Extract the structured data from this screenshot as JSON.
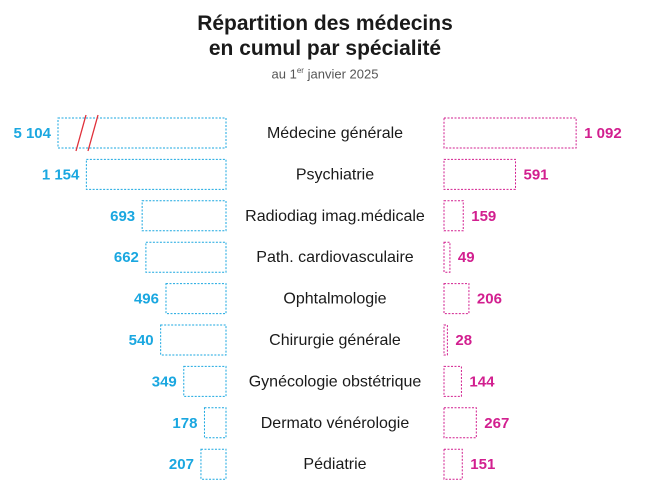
{
  "title_line1": "Répartition des médecins",
  "title_line2": "en cumul par spécialité",
  "subtitle_prefix": "au 1",
  "subtitle_sup": "er",
  "subtitle_suffix": " janvier 2025",
  "colors": {
    "left": "#1aa7e0",
    "right": "#d21f8f",
    "text": "#1a1a1a",
    "break": "#e0303a"
  },
  "chart_data": {
    "type": "bar",
    "title": "Répartition des médecins en cumul par spécialité",
    "subtitle": "au 1er janvier 2025",
    "categories": [
      "Médecine générale",
      "Psychiatrie",
      "Radiodiag imag.médicale",
      "Path. cardiovasculaire",
      "Ophtalmologie",
      "Chirurgie générale",
      "Gynécologie obstétrique",
      "Dermato vénérologie",
      "Pédiatrie"
    ],
    "series": [
      {
        "values": [
          5104,
          1154,
          693,
          662,
          496,
          540,
          349,
          178,
          207
        ],
        "labels": [
          "5 104",
          "1 154",
          "693",
          "662",
          "496",
          "540",
          "349",
          "178",
          "207"
        ],
        "color": "#1aa7e0",
        "side": "left",
        "truncated_first": true
      },
      {
        "values": [
          1092,
          591,
          159,
          49,
          206,
          28,
          144,
          267,
          151
        ],
        "labels": [
          "1 092",
          "591",
          "159",
          "49",
          "206",
          "28",
          "144",
          "267",
          "151"
        ],
        "color": "#d21f8f",
        "side": "right"
      }
    ]
  }
}
